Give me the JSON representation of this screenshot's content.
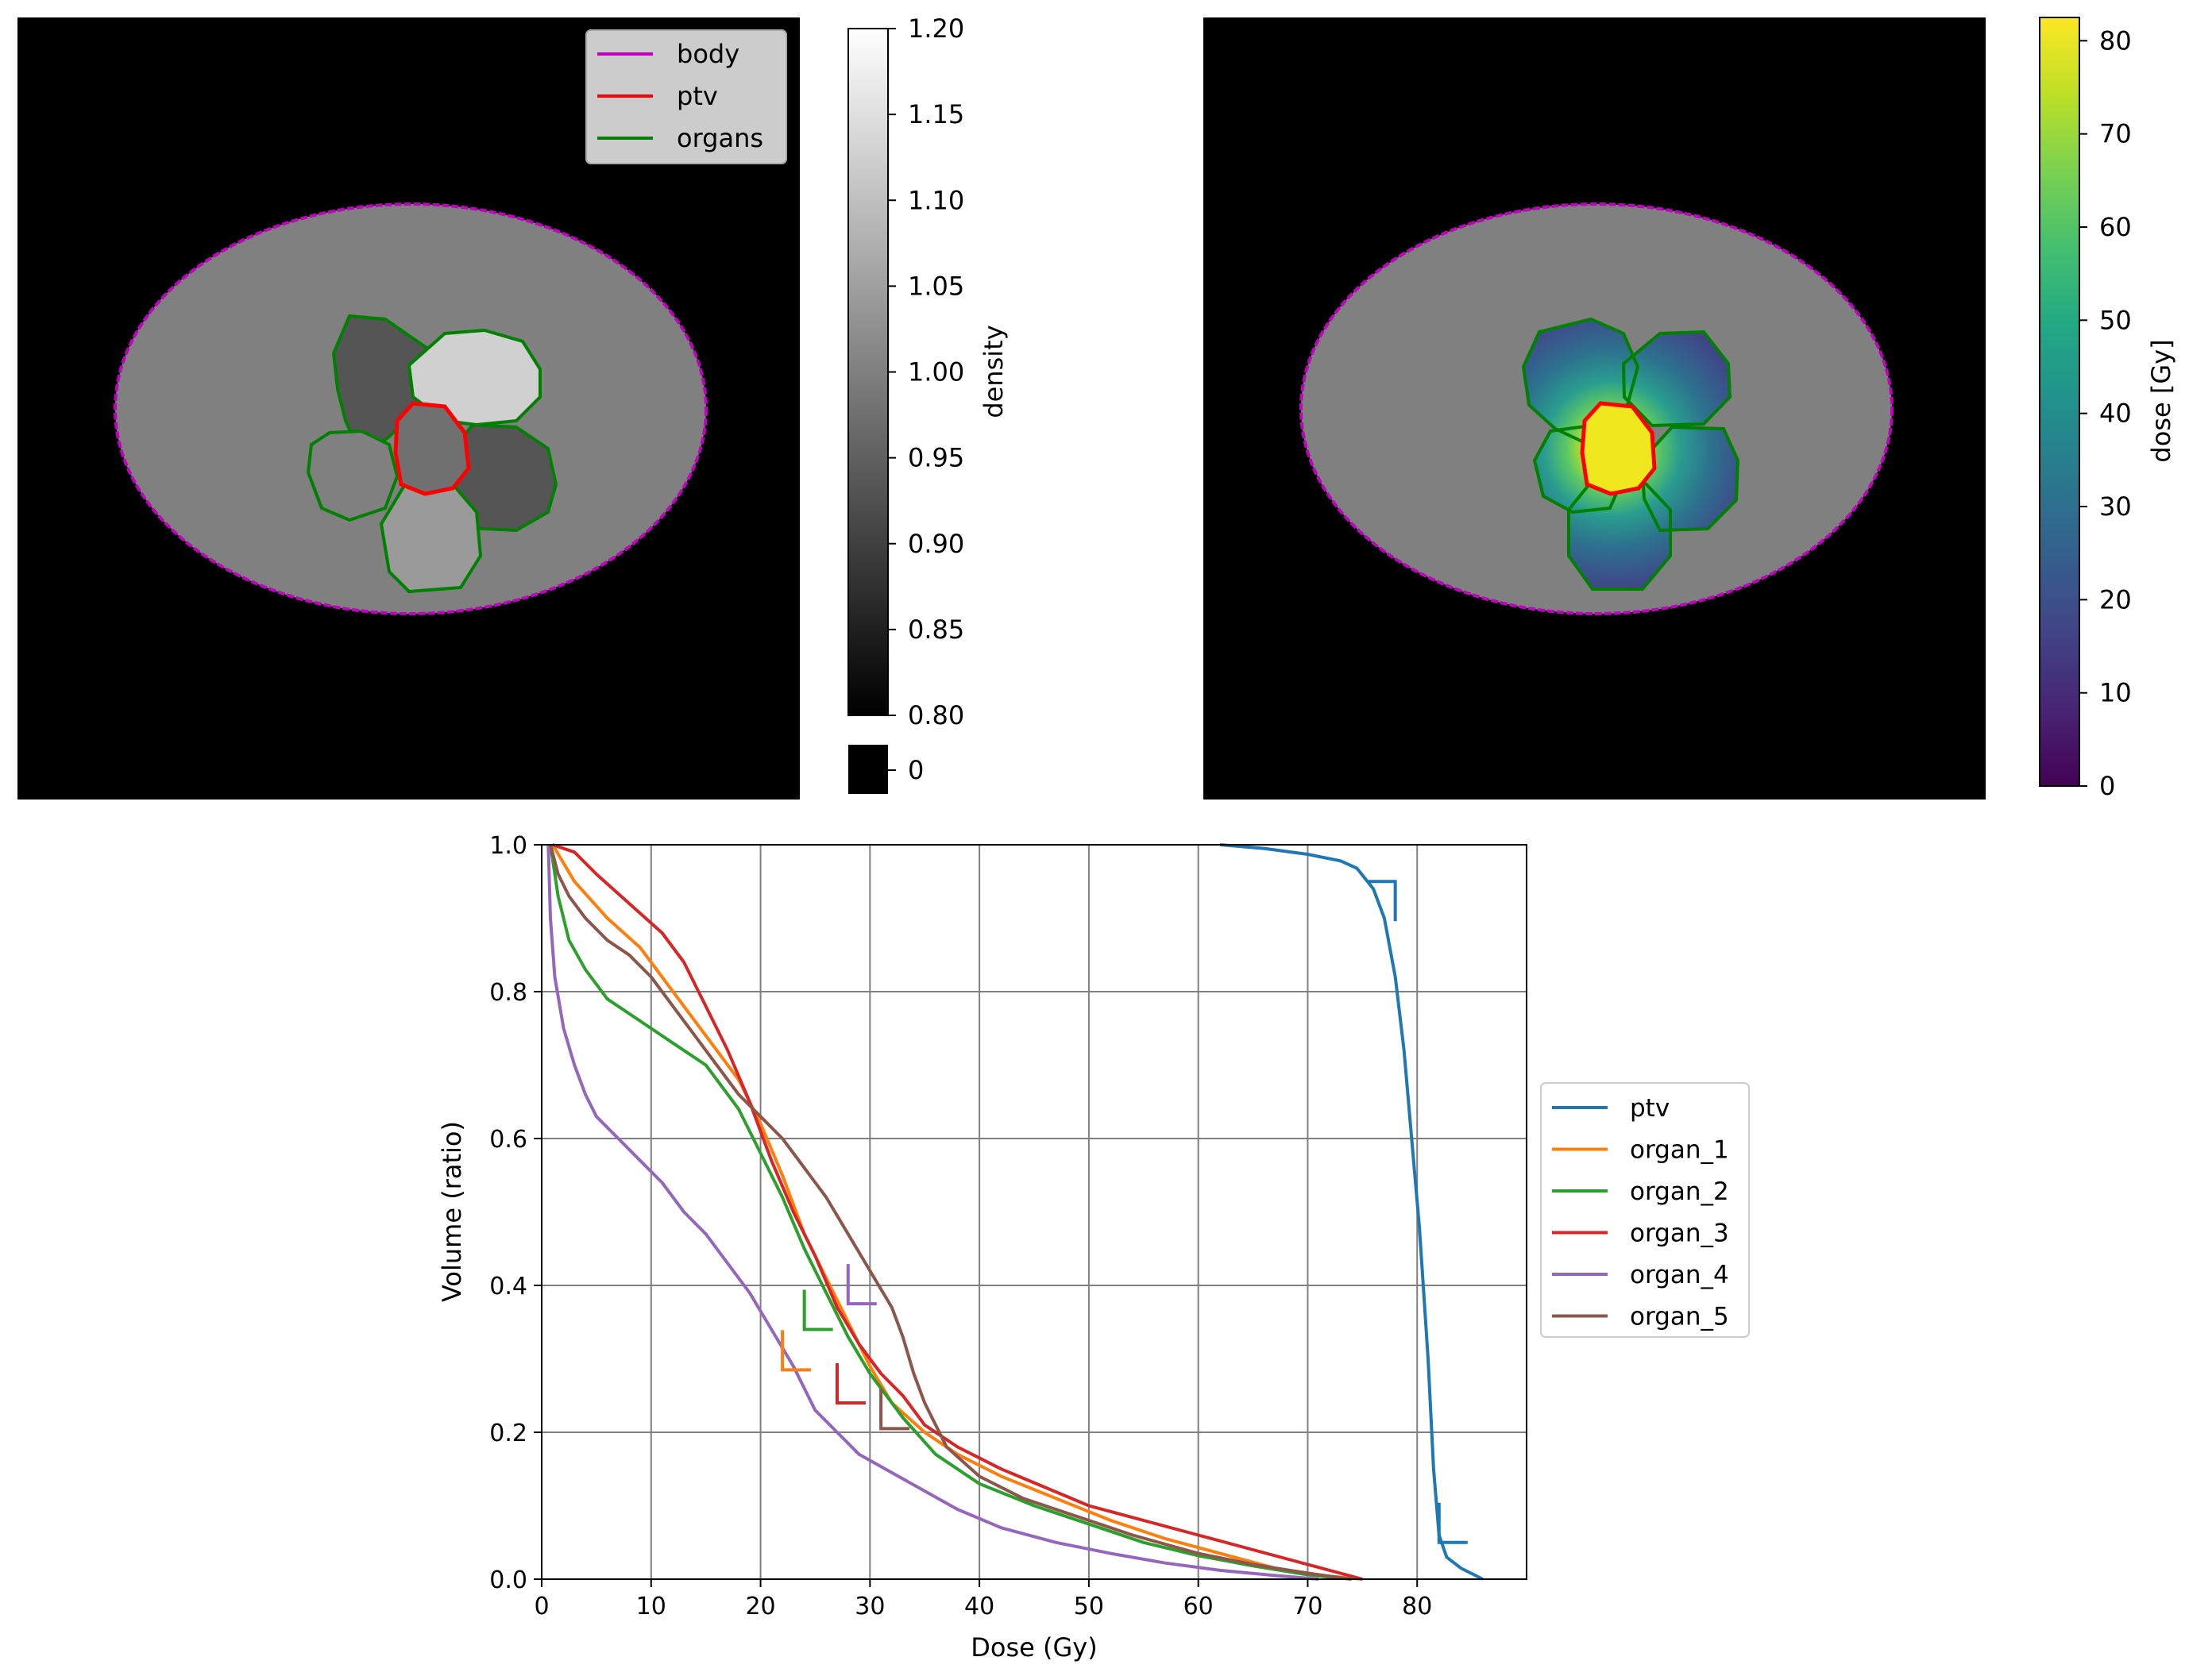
{
  "colors": {
    "body": "#bf00bf",
    "ptv": "#ff0000",
    "organs": "#008000",
    "background": "#000000",
    "tissue": "#808080"
  },
  "density_panel": {
    "legend": [
      "body",
      "ptv",
      "organs"
    ],
    "colorbar": {
      "label": "density",
      "ticks": [
        "1.20",
        "1.15",
        "1.10",
        "1.05",
        "1.00",
        "0.95",
        "0.90",
        "0.85",
        "0.80"
      ],
      "extra_tick": "0",
      "range": [
        0.8,
        1.2
      ]
    }
  },
  "dose_panel": {
    "colorbar": {
      "label": "dose [Gy]",
      "ticks": [
        "80",
        "70",
        "60",
        "50",
        "40",
        "30",
        "20",
        "10",
        "0"
      ],
      "range": [
        0,
        82.5
      ]
    }
  },
  "chart_data": {
    "type": "line",
    "title": "",
    "xlabel": "Dose (Gy)",
    "ylabel": "Volume (ratio)",
    "xlim": [
      0,
      90
    ],
    "ylim": [
      0,
      1
    ],
    "xticks": [
      "0",
      "10",
      "20",
      "30",
      "40",
      "50",
      "60",
      "70",
      "80"
    ],
    "yticks": [
      "0.0",
      "0.2",
      "0.4",
      "0.6",
      "0.8",
      "1.0"
    ],
    "grid": true,
    "legend_position": "right",
    "series": [
      {
        "name": "ptv",
        "color": "#1f77b4",
        "points": [
          [
            62,
            1.0
          ],
          [
            66,
            0.995
          ],
          [
            70,
            0.987
          ],
          [
            73,
            0.978
          ],
          [
            74.5,
            0.968
          ],
          [
            76,
            0.94
          ],
          [
            77,
            0.9
          ],
          [
            78,
            0.82
          ],
          [
            78.8,
            0.72
          ],
          [
            79.5,
            0.6
          ],
          [
            80.2,
            0.48
          ],
          [
            81,
            0.3
          ],
          [
            81.5,
            0.15
          ],
          [
            82,
            0.06
          ],
          [
            82.7,
            0.03
          ],
          [
            84,
            0.015
          ],
          [
            86,
            0.0
          ]
        ]
      },
      {
        "name": "organ_1",
        "color": "#ff7f0e",
        "points": [
          [
            1,
            1.0
          ],
          [
            3,
            0.95
          ],
          [
            6,
            0.9
          ],
          [
            9,
            0.86
          ],
          [
            12,
            0.8
          ],
          [
            15,
            0.74
          ],
          [
            18,
            0.68
          ],
          [
            20,
            0.62
          ],
          [
            22,
            0.55
          ],
          [
            24,
            0.47
          ],
          [
            26,
            0.41
          ],
          [
            28,
            0.35
          ],
          [
            30,
            0.29
          ],
          [
            32,
            0.24
          ],
          [
            35,
            0.2
          ],
          [
            38,
            0.17
          ],
          [
            42,
            0.14
          ],
          [
            47,
            0.11
          ],
          [
            52,
            0.08
          ],
          [
            57,
            0.055
          ],
          [
            62,
            0.035
          ],
          [
            67,
            0.015
          ],
          [
            72,
            0.004
          ],
          [
            75,
            0.0
          ]
        ]
      },
      {
        "name": "organ_2",
        "color": "#2ca02c",
        "points": [
          [
            0.8,
            1.0
          ],
          [
            1.5,
            0.93
          ],
          [
            2.5,
            0.87
          ],
          [
            4,
            0.83
          ],
          [
            6,
            0.79
          ],
          [
            9,
            0.76
          ],
          [
            12,
            0.73
          ],
          [
            15,
            0.7
          ],
          [
            18,
            0.64
          ],
          [
            20,
            0.58
          ],
          [
            22,
            0.52
          ],
          [
            24,
            0.45
          ],
          [
            26,
            0.39
          ],
          [
            28,
            0.33
          ],
          [
            30,
            0.28
          ],
          [
            33,
            0.22
          ],
          [
            36,
            0.17
          ],
          [
            40,
            0.13
          ],
          [
            45,
            0.1
          ],
          [
            50,
            0.075
          ],
          [
            55,
            0.05
          ],
          [
            60,
            0.032
          ],
          [
            65,
            0.018
          ],
          [
            70,
            0.006
          ],
          [
            74,
            0.0
          ]
        ]
      },
      {
        "name": "organ_3",
        "color": "#d62728",
        "points": [
          [
            1,
            1.0
          ],
          [
            3,
            0.99
          ],
          [
            5,
            0.96
          ],
          [
            8,
            0.92
          ],
          [
            11,
            0.88
          ],
          [
            13,
            0.84
          ],
          [
            15,
            0.78
          ],
          [
            17,
            0.72
          ],
          [
            19,
            0.65
          ],
          [
            21,
            0.57
          ],
          [
            23,
            0.5
          ],
          [
            25,
            0.44
          ],
          [
            27,
            0.37
          ],
          [
            29,
            0.32
          ],
          [
            31,
            0.28
          ],
          [
            33,
            0.25
          ],
          [
            35,
            0.21
          ],
          [
            38,
            0.18
          ],
          [
            42,
            0.15
          ],
          [
            46,
            0.125
          ],
          [
            50,
            0.1
          ],
          [
            55,
            0.08
          ],
          [
            60,
            0.06
          ],
          [
            65,
            0.04
          ],
          [
            70,
            0.02
          ],
          [
            75,
            0.0
          ]
        ]
      },
      {
        "name": "organ_4",
        "color": "#9467bd",
        "points": [
          [
            0.6,
            1.0
          ],
          [
            0.8,
            0.9
          ],
          [
            1.2,
            0.82
          ],
          [
            2,
            0.75
          ],
          [
            3,
            0.7
          ],
          [
            4,
            0.66
          ],
          [
            5,
            0.63
          ],
          [
            7,
            0.6
          ],
          [
            9,
            0.57
          ],
          [
            11,
            0.54
          ],
          [
            13,
            0.5
          ],
          [
            15,
            0.47
          ],
          [
            17,
            0.43
          ],
          [
            19,
            0.39
          ],
          [
            21,
            0.34
          ],
          [
            23,
            0.29
          ],
          [
            25,
            0.23
          ],
          [
            27,
            0.2
          ],
          [
            29,
            0.17
          ],
          [
            32,
            0.145
          ],
          [
            35,
            0.12
          ],
          [
            38,
            0.095
          ],
          [
            42,
            0.07
          ],
          [
            47,
            0.05
          ],
          [
            52,
            0.035
          ],
          [
            57,
            0.022
          ],
          [
            62,
            0.012
          ],
          [
            67,
            0.005
          ],
          [
            71,
            0.0
          ]
        ]
      },
      {
        "name": "organ_5",
        "color": "#8c564b",
        "points": [
          [
            0.8,
            1.0
          ],
          [
            1.5,
            0.96
          ],
          [
            2.5,
            0.93
          ],
          [
            4,
            0.9
          ],
          [
            6,
            0.87
          ],
          [
            8,
            0.85
          ],
          [
            10,
            0.82
          ],
          [
            12,
            0.78
          ],
          [
            14,
            0.74
          ],
          [
            16,
            0.7
          ],
          [
            18,
            0.66
          ],
          [
            20,
            0.63
          ],
          [
            22,
            0.6
          ],
          [
            24,
            0.56
          ],
          [
            26,
            0.52
          ],
          [
            28,
            0.47
          ],
          [
            30,
            0.42
          ],
          [
            32,
            0.37
          ],
          [
            33,
            0.33
          ],
          [
            34,
            0.28
          ],
          [
            35,
            0.24
          ],
          [
            37,
            0.18
          ],
          [
            40,
            0.14
          ],
          [
            44,
            0.11
          ],
          [
            49,
            0.085
          ],
          [
            54,
            0.06
          ],
          [
            60,
            0.035
          ],
          [
            65,
            0.02
          ],
          [
            70,
            0.008
          ],
          [
            74,
            0.0
          ]
        ]
      }
    ],
    "constraint_markers": [
      {
        "series": "ptv",
        "type": "min",
        "dose": 78,
        "volume": 0.95
      },
      {
        "series": "ptv",
        "type": "max",
        "dose": 82,
        "volume": 0.05
      },
      {
        "series": "organ_1",
        "type": "max",
        "dose": 22,
        "volume": 0.285
      },
      {
        "series": "organ_2",
        "type": "max",
        "dose": 24,
        "volume": 0.34
      },
      {
        "series": "organ_3",
        "type": "max",
        "dose": 27,
        "volume": 0.24
      },
      {
        "series": "organ_4",
        "type": "max",
        "dose": 28,
        "volume": 0.375
      },
      {
        "series": "organ_5",
        "type": "max",
        "dose": 31,
        "volume": 0.205
      }
    ]
  }
}
